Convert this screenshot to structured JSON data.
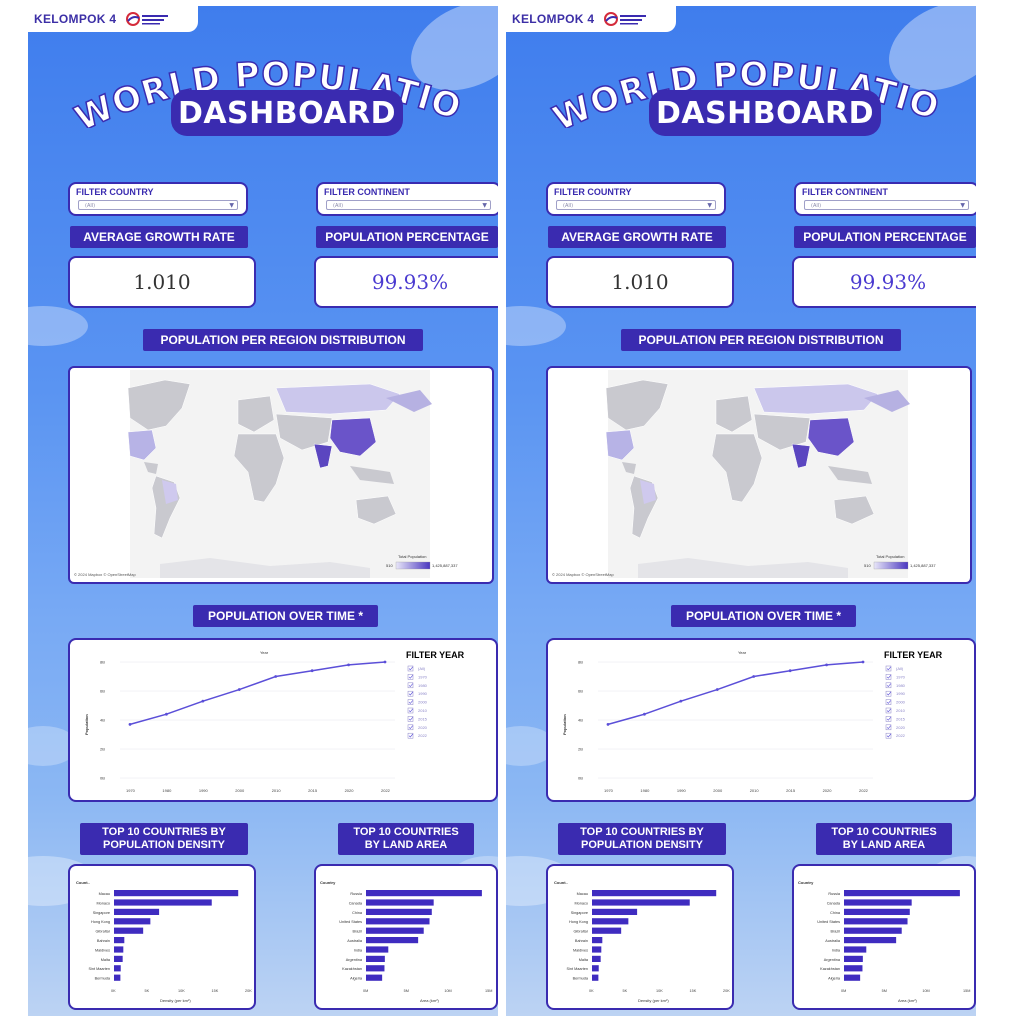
{
  "brand": {
    "name": "KELOMPOK 4"
  },
  "title": {
    "line1": "WORLD POPULATION",
    "line2": "DASHBOARD"
  },
  "filters": {
    "country": {
      "label": "FILTER COUNTRY",
      "value": "(All)"
    },
    "continent": {
      "label": "FILTER CONTINENT",
      "value": "(All)"
    }
  },
  "kpis": {
    "growth": {
      "label": "AVERAGE GROWTH RATE",
      "value": "1.010"
    },
    "percentage": {
      "label": "POPULATION PERCENTAGE",
      "value": "99.93%"
    }
  },
  "map": {
    "heading": "POPULATION PER REGION DISTRIBUTION",
    "legend_title": "Total Population",
    "legend_min": "510",
    "legend_max": "1,425,887,337",
    "attribution": "© 2024 Mapbox © OpenStreetMap"
  },
  "line_chart": {
    "heading": "POPULATION OVER TIME *",
    "chart_title": "Year",
    "ylabel": "Population",
    "filter_title": "FILTER YEAR",
    "filter_items": [
      "(All)",
      "1970",
      "1980",
      "1990",
      "2000",
      "2010",
      "2015",
      "2020",
      "2022"
    ]
  },
  "density_chart": {
    "heading_line1": "TOP 10 COUNTRIES BY",
    "heading_line2": "POPULATION DENSITY",
    "header": "Count..",
    "xlabel": "Density (per km²)"
  },
  "area_chart": {
    "heading_line1": "TOP 10 COUNTRIES",
    "heading_line2": "BY LAND AREA",
    "header": "Country",
    "xlabel": "Area (km²)"
  },
  "colors": {
    "accent": "#3a2bb0",
    "line": "#5b4fd8",
    "bar": "#3f2cc0"
  },
  "chart_data": [
    {
      "type": "line",
      "x": [
        "1970",
        "1980",
        "1990",
        "2000",
        "2010",
        "2015",
        "2020",
        "2022"
      ],
      "series": [
        {
          "values": [
            3.7,
            4.4,
            5.3,
            6.1,
            7.0,
            7.4,
            7.8,
            8.0
          ]
        }
      ],
      "xlabel": "",
      "ylabel": "Population",
      "yticks": [
        "0B",
        "2B",
        "4B",
        "6B",
        "8B"
      ],
      "ylim": [
        0,
        8
      ]
    },
    {
      "type": "bar",
      "orientation": "horizontal",
      "categories": [
        "Macau",
        "Monaco",
        "Singapore",
        "Hong Kong",
        "Gibraltar",
        "Bahrain",
        "Maldives",
        "Malta",
        "Sint Maarten",
        "Bermuda"
      ],
      "values": [
        23172,
        18235,
        8416,
        6783,
        5441,
        1924,
        1738,
        1618,
        1256,
        1190
      ],
      "xlabel": "Density (per km²)",
      "xticks": [
        "0K",
        "5K",
        "10K",
        "15K",
        "20K"
      ],
      "xlim": [
        0,
        25000
      ]
    },
    {
      "type": "bar",
      "orientation": "horizontal",
      "categories": [
        "Russia",
        "Canada",
        "China",
        "United States",
        "Brazil",
        "Australia",
        "India",
        "Argentina",
        "Kazakhstan",
        "Algeria"
      ],
      "values": [
        17098242,
        9984670,
        9706961,
        9372610,
        8515767,
        7692024,
        3287590,
        2780400,
        2724900,
        2381741
      ],
      "xlabel": "Area (km²)",
      "xticks": [
        "0M",
        "5M",
        "10M",
        "15M"
      ],
      "xlim": [
        0,
        18000000
      ]
    }
  ]
}
